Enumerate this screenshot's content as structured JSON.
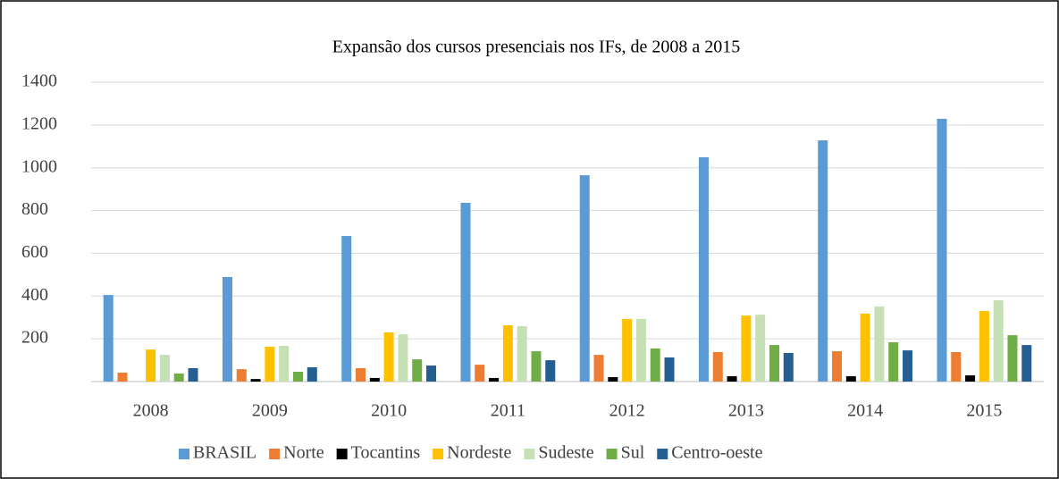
{
  "chart_data": {
    "type": "bar",
    "title": "Expansão dos cursos presenciais nos IFs, de 2008 a 2015",
    "categories": [
      "2008",
      "2009",
      "2010",
      "2011",
      "2012",
      "2013",
      "2014",
      "2015"
    ],
    "series": [
      {
        "name": "BRASIL",
        "color": "#5b9bd5",
        "values": [
          405,
          489,
          681,
          836,
          965,
          1049,
          1128,
          1229
        ]
      },
      {
        "name": "Norte",
        "color": "#ed7d31",
        "values": [
          42,
          58,
          63,
          79,
          125,
          138,
          142,
          138
        ]
      },
      {
        "name": "Tocantins",
        "color": "#000000",
        "values": [
          0,
          12,
          17,
          17,
          21,
          25,
          25,
          29
        ]
      },
      {
        "name": "Nordeste",
        "color": "#ffc000",
        "values": [
          150,
          163,
          230,
          263,
          293,
          309,
          318,
          330
        ]
      },
      {
        "name": "Sudeste",
        "color": "#c5e0b4",
        "values": [
          125,
          167,
          221,
          259,
          293,
          313,
          351,
          380
        ]
      },
      {
        "name": "Sul",
        "color": "#70ad47",
        "values": [
          38,
          46,
          104,
          142,
          155,
          171,
          184,
          217
        ]
      },
      {
        "name": "Centro-oeste",
        "color": "#255e91",
        "values": [
          63,
          67,
          75,
          100,
          113,
          134,
          146,
          171
        ]
      }
    ],
    "ylim": [
      0,
      1400
    ],
    "yticks": [
      200,
      400,
      600,
      800,
      1000,
      1200,
      1400
    ],
    "grid": true,
    "legend": "bottom"
  }
}
